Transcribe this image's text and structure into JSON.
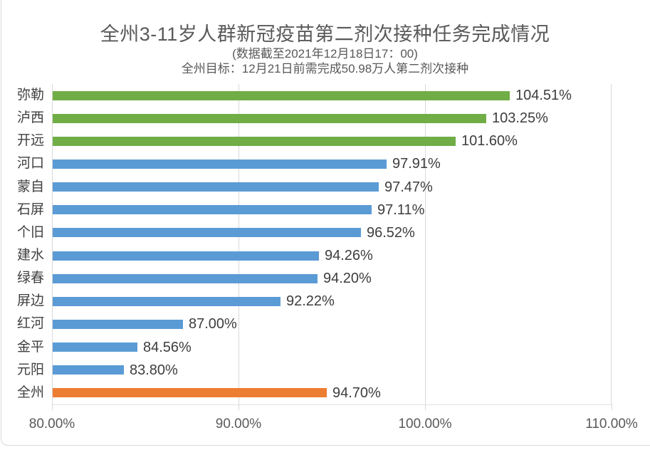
{
  "chart_data": {
    "type": "bar",
    "orientation": "horizontal",
    "title": "全州3-11岁人群新冠疫苗第二剂次接种任务完成情况",
    "subtitle_datetime": "(数据截至2021年12月18日17：00)",
    "subtitle_target": "全州目标：12月21日前需完成50.98万人第二剂次接种",
    "categories": [
      "弥勒",
      "泸西",
      "开远",
      "河口",
      "蒙自",
      "石屏",
      "个旧",
      "建水",
      "绿春",
      "屏边",
      "红河",
      "金平",
      "元阳",
      "全州"
    ],
    "values": [
      104.51,
      103.25,
      101.6,
      97.91,
      97.47,
      97.11,
      96.52,
      94.26,
      94.2,
      92.22,
      87.0,
      84.56,
      83.8,
      94.7
    ],
    "value_labels": [
      "104.51%",
      "103.25%",
      "101.60%",
      "97.91%",
      "97.47%",
      "97.11%",
      "96.52%",
      "94.26%",
      "94.20%",
      "92.22%",
      "87.00%",
      "84.56%",
      "83.80%",
      "94.70%"
    ],
    "bar_colors": [
      "#70AD47",
      "#70AD47",
      "#70AD47",
      "#5B9BD5",
      "#5B9BD5",
      "#5B9BD5",
      "#5B9BD5",
      "#5B9BD5",
      "#5B9BD5",
      "#5B9BD5",
      "#5B9BD5",
      "#5B9BD5",
      "#5B9BD5",
      "#ED7D31"
    ],
    "xlabel": "",
    "ylabel": "",
    "xlim": [
      80,
      110
    ],
    "x_tick_values": [
      80,
      90,
      100,
      110
    ],
    "x_tick_labels": [
      "80.00%",
      "90.00%",
      "100.00%",
      "110.00%"
    ],
    "grid": true,
    "legend": false,
    "colors": {
      "achieved_green": "#70AD47",
      "pending_blue": "#5B9BD5",
      "total_orange": "#ED7D31",
      "gridline": "#D9D9D9",
      "title_text": "#595959",
      "label_text": "#404040"
    }
  }
}
